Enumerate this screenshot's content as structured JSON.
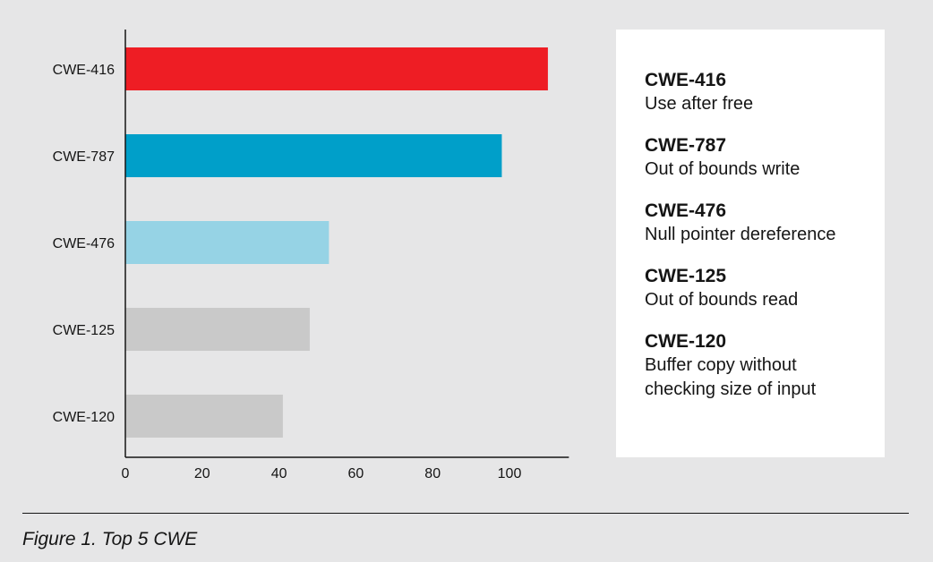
{
  "chart_data": {
    "type": "bar",
    "orientation": "horizontal",
    "categories": [
      "CWE-416",
      "CWE-787",
      "CWE-476",
      "CWE-125",
      "CWE-120"
    ],
    "values": [
      110,
      98,
      53,
      48,
      41
    ],
    "colors": [
      "#ee1d24",
      "#009fc9",
      "#96d3e5",
      "#c9c9c9",
      "#c9c9c9"
    ],
    "xticks": [
      0,
      20,
      40,
      60,
      80,
      100
    ],
    "xlim": [
      0,
      115
    ],
    "grid": false,
    "legend_placement": "right",
    "legend": [
      {
        "code": "CWE-416",
        "description": "Use after free"
      },
      {
        "code": "CWE-787",
        "description": "Out of bounds write"
      },
      {
        "code": "CWE-476",
        "description": "Null pointer dereference"
      },
      {
        "code": "CWE-125",
        "description": "Out of bounds read"
      },
      {
        "code": "CWE-120",
        "description": "Buffer copy without checking size of input"
      }
    ]
  },
  "caption": "Figure 1. Top 5 CWE"
}
